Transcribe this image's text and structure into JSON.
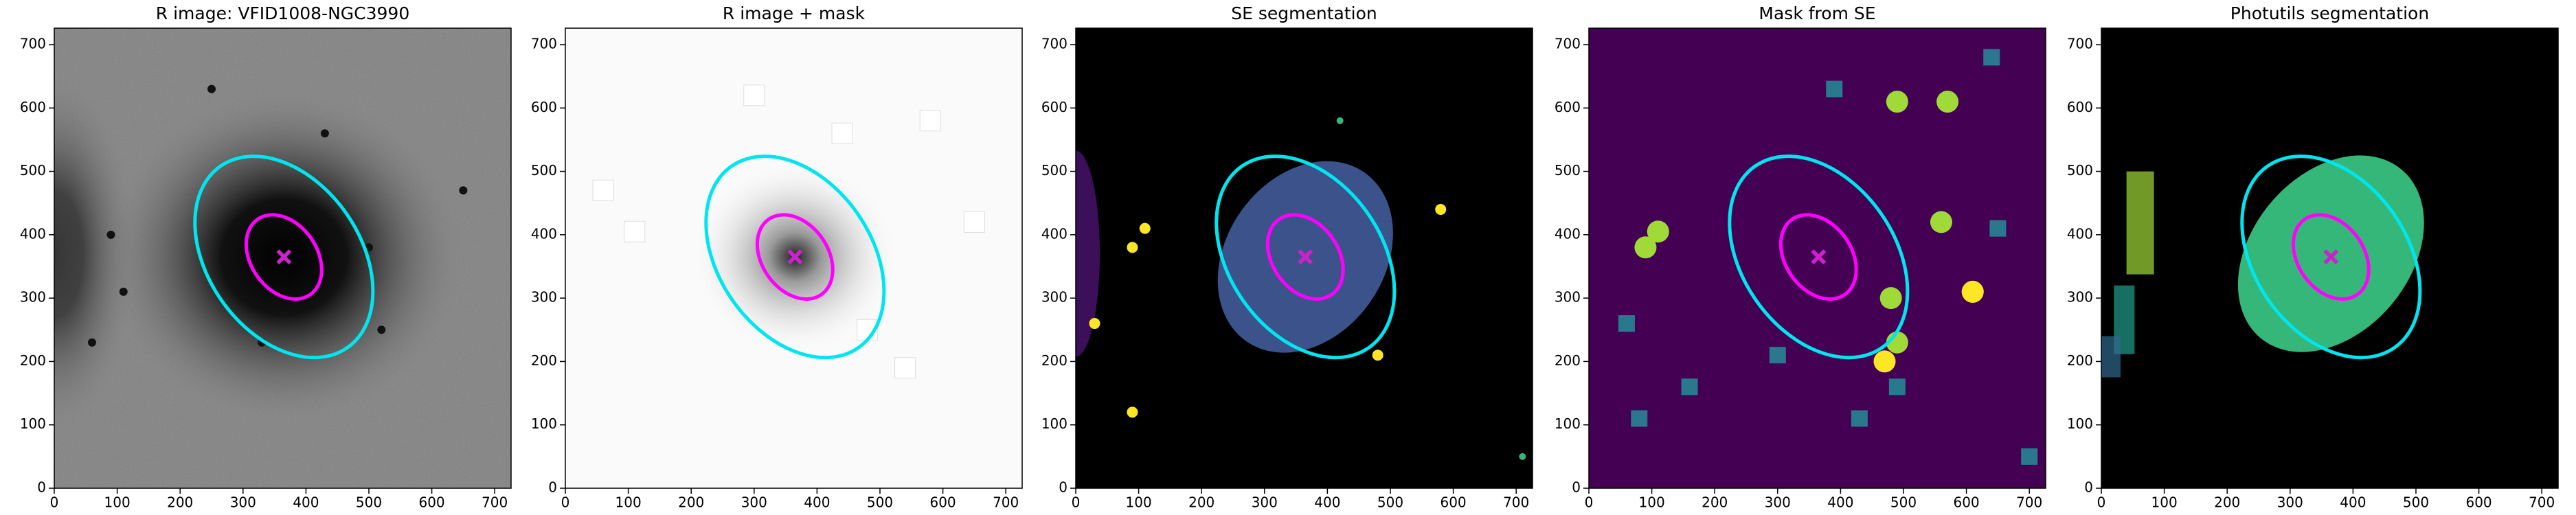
{
  "chart_data": [
    {
      "type": "image",
      "title": "R image: VFID1008-NGC3990",
      "background": "#808080",
      "xlim": [
        0,
        726
      ],
      "ylim": [
        0,
        726
      ],
      "xticks": [
        0,
        100,
        200,
        300,
        400,
        500,
        600,
        700
      ],
      "yticks": [
        0,
        100,
        200,
        300,
        400,
        500,
        600,
        700
      ],
      "ellipses": [
        {
          "x": 365,
          "y": 365,
          "a": 176,
          "b": 120,
          "angle": 125,
          "color": "#00e5ee"
        },
        {
          "x": 365,
          "y": 365,
          "a": 73,
          "b": 52,
          "angle": 125,
          "color": "#ff00ff"
        }
      ],
      "marker": {
        "x": 365,
        "y": 365,
        "color": "#cc22cc"
      }
    },
    {
      "type": "image",
      "title": "R image + mask",
      "background": "#fafafa",
      "xlim": [
        0,
        726
      ],
      "ylim": [
        0,
        726
      ],
      "xticks": [
        0,
        100,
        200,
        300,
        400,
        500,
        600,
        700
      ],
      "yticks": [
        0,
        100,
        200,
        300,
        400,
        500,
        600,
        700
      ],
      "ellipses": [
        {
          "x": 365,
          "y": 365,
          "a": 176,
          "b": 120,
          "angle": 125,
          "color": "#00e5ee"
        },
        {
          "x": 365,
          "y": 365,
          "a": 73,
          "b": 52,
          "angle": 125,
          "color": "#ff00ff"
        }
      ],
      "marker": {
        "x": 365,
        "y": 365,
        "color": "#cc22cc"
      }
    },
    {
      "type": "image",
      "title": "SE segmentation",
      "background": "#000000",
      "xlim": [
        0,
        726
      ],
      "ylim": [
        0,
        726
      ],
      "xticks": [
        0,
        100,
        200,
        300,
        400,
        500,
        600,
        700
      ],
      "yticks": [
        0,
        100,
        200,
        300,
        400,
        500,
        600,
        700
      ],
      "ellipses": [
        {
          "x": 365,
          "y": 365,
          "a": 176,
          "b": 120,
          "angle": 125,
          "color": "#00e5ee"
        },
        {
          "x": 365,
          "y": 365,
          "a": 73,
          "b": 52,
          "angle": 125,
          "color": "#ff00ff"
        }
      ],
      "marker": {
        "x": 365,
        "y": 365,
        "color": "#cc22cc"
      }
    },
    {
      "type": "image",
      "title": "Mask from SE",
      "background": "#440154",
      "xlim": [
        0,
        726
      ],
      "ylim": [
        0,
        726
      ],
      "xticks": [
        0,
        100,
        200,
        300,
        400,
        500,
        600,
        700
      ],
      "yticks": [
        0,
        100,
        200,
        300,
        400,
        500,
        600,
        700
      ],
      "ellipses": [
        {
          "x": 365,
          "y": 365,
          "a": 176,
          "b": 120,
          "angle": 125,
          "color": "#00e5ee"
        },
        {
          "x": 365,
          "y": 365,
          "a": 73,
          "b": 52,
          "angle": 125,
          "color": "#ff00ff"
        }
      ],
      "marker": {
        "x": 365,
        "y": 365,
        "color": "#cc22cc"
      }
    },
    {
      "type": "image",
      "title": "Photutils segmentation",
      "background": "#000000",
      "xlim": [
        0,
        726
      ],
      "ylim": [
        0,
        726
      ],
      "xticks": [
        0,
        100,
        200,
        300,
        400,
        500,
        600,
        700
      ],
      "yticks": [
        0,
        100,
        200,
        300,
        400,
        500,
        600,
        700
      ],
      "ellipses": [
        {
          "x": 365,
          "y": 365,
          "a": 176,
          "b": 120,
          "angle": 125,
          "color": "#00e5ee"
        },
        {
          "x": 365,
          "y": 365,
          "a": 73,
          "b": 52,
          "angle": 125,
          "color": "#ff00ff"
        }
      ],
      "marker": {
        "x": 365,
        "y": 365,
        "color": "#cc22cc"
      }
    }
  ]
}
